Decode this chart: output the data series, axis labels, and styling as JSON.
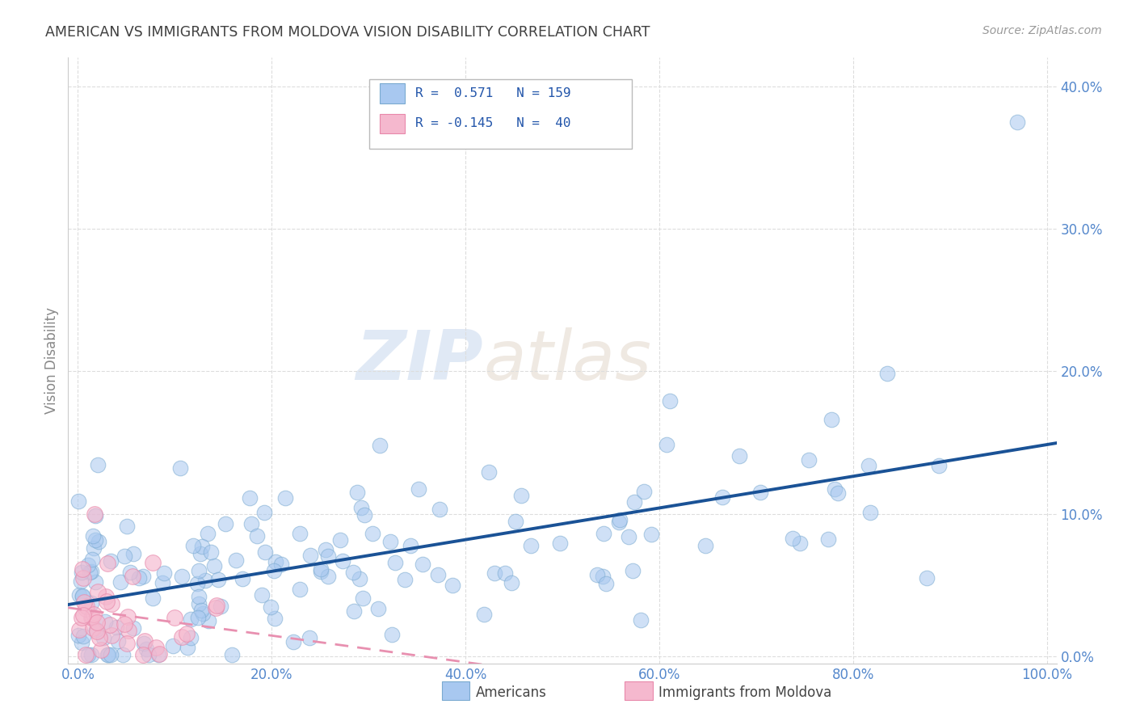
{
  "title": "AMERICAN VS IMMIGRANTS FROM MOLDOVA VISION DISABILITY CORRELATION CHART",
  "source": "Source: ZipAtlas.com",
  "xlabel_vals": [
    0,
    20,
    40,
    60,
    80,
    100
  ],
  "ylabel": "Vision Disability",
  "ylabel_vals": [
    0,
    10,
    20,
    30,
    40
  ],
  "xlim": [
    -1,
    101
  ],
  "ylim": [
    -0.5,
    42
  ],
  "watermark_zip": "ZIP",
  "watermark_atlas": "atlas",
  "american_color": "#a8c8f0",
  "american_edge_color": "#7aaad0",
  "moldova_color": "#f5b8ce",
  "moldova_edge_color": "#e888aa",
  "american_line_color": "#1a5296",
  "moldova_line_color": "#e890b0",
  "background_color": "#ffffff",
  "grid_color": "#dddddd",
  "title_color": "#404040",
  "source_color": "#999999",
  "tick_color": "#5588cc",
  "ylabel_color": "#888888",
  "american_R": 0.571,
  "american_N": 159,
  "moldova_R": -0.145,
  "moldova_N": 40
}
